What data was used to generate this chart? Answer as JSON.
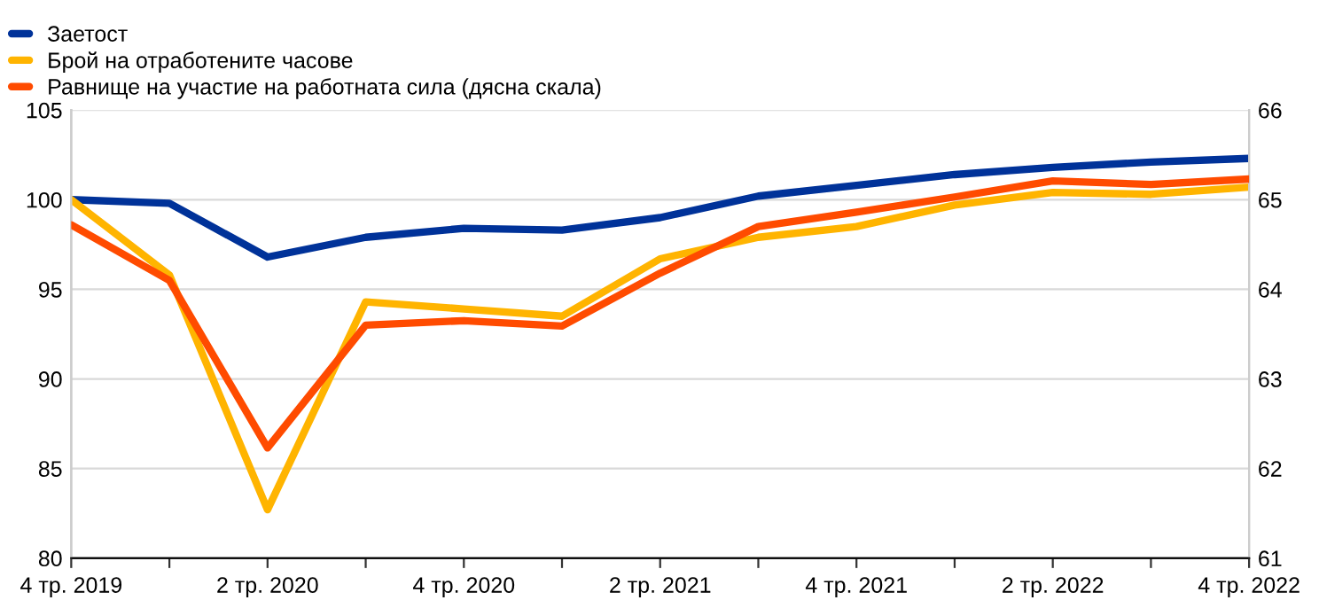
{
  "chart_data": {
    "type": "line",
    "categories": [
      "4 тр. 2019",
      null,
      "2 тр. 2020",
      null,
      "4 тр. 2020",
      null,
      "2 тр. 2021",
      null,
      "4 тр. 2021",
      null,
      "2 тр. 2022",
      null,
      "4 тр. 2022"
    ],
    "series": [
      {
        "name": "Заетост",
        "color": "#003299",
        "values": [
          100.0,
          99.8,
          96.8,
          97.9,
          98.4,
          98.3,
          99.0,
          100.2,
          100.8,
          101.4,
          101.8,
          102.1,
          102.3
        ]
      },
      {
        "name": "Брой на отработените часове",
        "color": "#ffb400",
        "values": [
          100.0,
          95.8,
          82.7,
          94.3,
          93.9,
          93.5,
          96.7,
          97.9,
          98.5,
          99.7,
          100.4,
          100.3,
          100.7
        ]
      },
      {
        "name": "Равнище на участие на работната сила (дясна скала)",
        "color": "#ff4b00",
        "axis": "y2",
        "values": [
          64.72,
          64.1,
          62.23,
          63.6,
          63.65,
          63.59,
          64.18,
          64.7,
          64.86,
          65.03,
          65.21,
          65.17,
          65.23
        ]
      }
    ],
    "ylim": [
      80,
      105
    ],
    "yticks": [
      80,
      85,
      90,
      95,
      100,
      105
    ],
    "y2lim": [
      61,
      66
    ],
    "y2ticks": [
      61,
      62,
      63,
      64,
      65,
      66
    ],
    "grid": "y",
    "legend": "top left",
    "line_style": "solid",
    "marker": "none"
  }
}
